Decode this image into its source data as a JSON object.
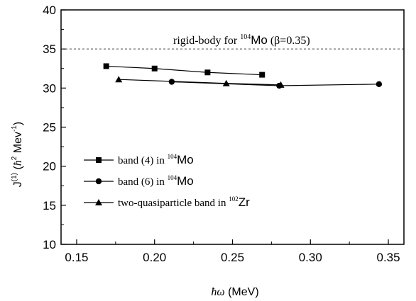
{
  "chart_data": {
    "type": "line",
    "xlabel": "ħω (MeV)",
    "ylabel": "J(1) (ħ2 Mev-1)",
    "xlim": [
      0.14,
      0.36
    ],
    "ylim": [
      10,
      40
    ],
    "x_ticks": [
      0.15,
      0.2,
      0.25,
      0.3,
      0.35
    ],
    "x_tick_labels": [
      "0.15",
      "0.20",
      "0.25",
      "0.30",
      "0.35"
    ],
    "y_ticks": [
      10,
      15,
      20,
      25,
      30,
      35,
      40
    ],
    "y_tick_labels": [
      "10",
      "15",
      "20",
      "25",
      "30",
      "35",
      "40"
    ],
    "grid": false,
    "legend_position": "lower-left",
    "reference_line": {
      "y": 35,
      "style": "dashed",
      "label_prefix": "rigid-body for ",
      "label_mass": "104",
      "label_element": "Mo",
      "label_suffix": " (β=0.35)"
    },
    "series": [
      {
        "name": "band (4) in 104Mo",
        "legend_text": "band (4) in ",
        "legend_mass": "104",
        "legend_element": "Mo",
        "marker": "square",
        "x": [
          0.169,
          0.2,
          0.234,
          0.269
        ],
        "y": [
          32.8,
          32.5,
          32.0,
          31.7
        ]
      },
      {
        "name": "band (6) in 104Mo",
        "legend_text": "band (6) in ",
        "legend_mass": "104",
        "legend_element": "Mo",
        "marker": "circle",
        "x": [
          0.211,
          0.28,
          0.344
        ],
        "y": [
          30.8,
          30.3,
          30.5
        ]
      },
      {
        "name": "two-quasiparticle band in 102Zr",
        "legend_text": "two-quasiparticle band in ",
        "legend_mass": "102",
        "legend_element": "Zr",
        "marker": "triangle",
        "x": [
          0.177,
          0.246,
          0.281
        ],
        "y": [
          31.1,
          30.6,
          30.4
        ]
      }
    ]
  }
}
